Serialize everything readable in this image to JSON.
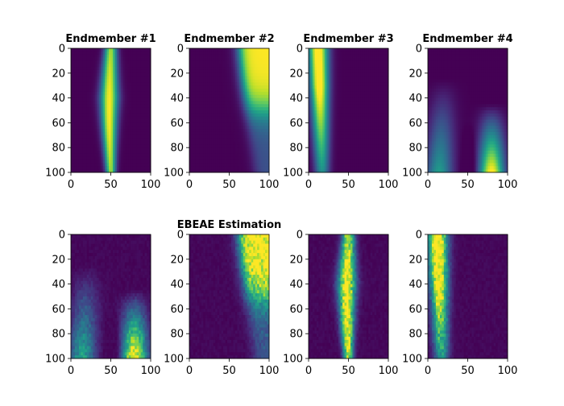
{
  "chart_data": {
    "type": "heatmap",
    "layout": "2x4 grid of image subplots",
    "colormap": "viridis",
    "value_range": [
      0,
      1
    ],
    "xticks": [
      "0",
      "50",
      "100"
    ],
    "yticks": [
      "0",
      "20",
      "40",
      "60",
      "80",
      "100"
    ],
    "xlim": [
      0,
      100
    ],
    "ylim": [
      100,
      0
    ],
    "panels": [
      {
        "title": "Endmember #1",
        "pattern": "center-band",
        "noisy": false
      },
      {
        "title": "Endmember #2",
        "pattern": "top-right-blob",
        "noisy": false
      },
      {
        "title": "Endmember #3",
        "pattern": "left-band",
        "noisy": false
      },
      {
        "title": "Endmember #4",
        "pattern": "v-shape-bottom",
        "noisy": false
      },
      {
        "title": "",
        "pattern": "v-shape-bottom",
        "noisy": true
      },
      {
        "title": "EBEAE Estimation",
        "pattern": "top-right-blob",
        "noisy": true
      },
      {
        "title": "",
        "pattern": "center-band",
        "noisy": true
      },
      {
        "title": "",
        "pattern": "left-band",
        "noisy": true
      }
    ]
  }
}
